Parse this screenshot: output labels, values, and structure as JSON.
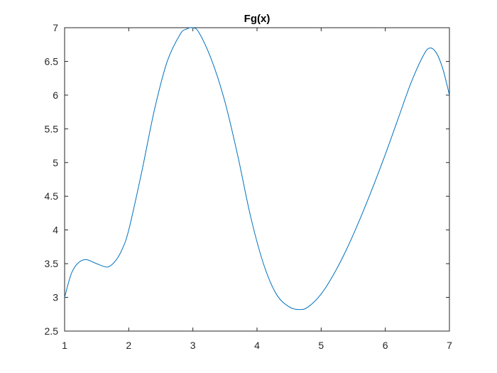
{
  "chart_data": {
    "type": "line",
    "title": "Fg(x)",
    "xlabel": "",
    "ylabel": "",
    "xlim": [
      1,
      7
    ],
    "ylim": [
      2.5,
      7
    ],
    "x_ticks": [
      1,
      2,
      3,
      4,
      5,
      6,
      7
    ],
    "y_ticks": [
      2.5,
      3,
      3.5,
      4,
      4.5,
      5,
      5.5,
      6,
      6.5,
      7
    ],
    "grid": false,
    "line_color": "#0072BD",
    "series": [
      {
        "x": [
          1.0,
          1.1,
          1.2,
          1.33,
          1.5,
          1.67,
          1.8,
          1.9,
          2.0,
          2.2,
          2.4,
          2.6,
          2.8,
          2.9,
          3.0,
          3.1,
          3.3,
          3.5,
          3.7,
          3.9,
          4.1,
          4.3,
          4.5,
          4.67,
          4.8,
          5.0,
          5.2,
          5.4,
          5.6,
          5.8,
          6.0,
          6.2,
          6.4,
          6.6,
          6.7,
          6.8,
          6.9,
          7.0
        ],
        "y": [
          3.0,
          3.34,
          3.5,
          3.56,
          3.5,
          3.45,
          3.55,
          3.72,
          4.0,
          4.85,
          5.78,
          6.5,
          6.9,
          6.98,
          7.0,
          6.92,
          6.5,
          5.9,
          5.1,
          4.2,
          3.5,
          3.05,
          2.86,
          2.82,
          2.86,
          3.05,
          3.35,
          3.72,
          4.15,
          4.62,
          5.12,
          5.65,
          6.18,
          6.6,
          6.7,
          6.62,
          6.38,
          6.0
        ]
      }
    ]
  }
}
